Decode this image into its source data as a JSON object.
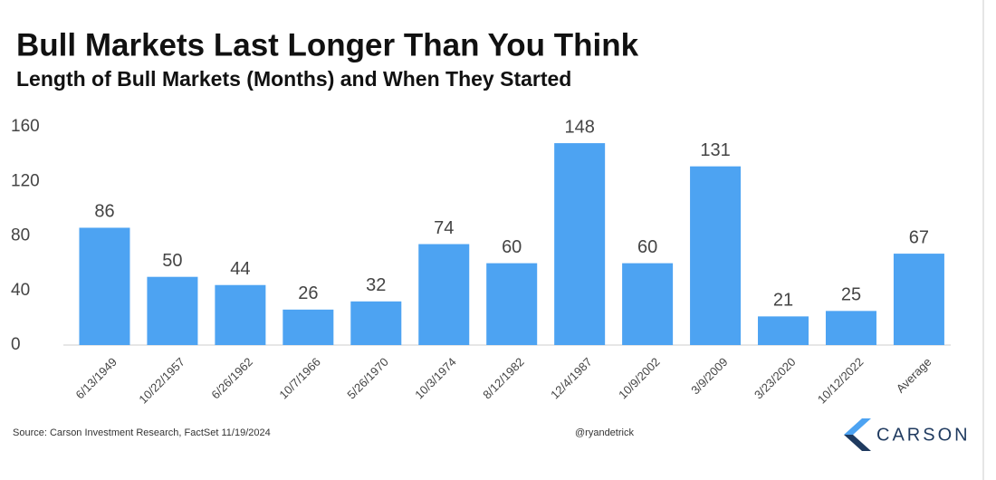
{
  "chart_data": {
    "type": "bar",
    "title": "Bull Markets Last Longer Than You Think",
    "subtitle": "Length of Bull Markets (Months) and When They Started",
    "categories": [
      "6/13/1949",
      "10/22/1957",
      "6/26/1962",
      "10/7/1966",
      "5/26/1970",
      "10/3/1974",
      "8/12/1982",
      "12/4/1987",
      "10/9/2002",
      "3/9/2009",
      "3/23/2020",
      "10/12/2022",
      "Average"
    ],
    "values": [
      86,
      50,
      44,
      26,
      32,
      74,
      60,
      148,
      60,
      131,
      21,
      25,
      67
    ],
    "color": "#4da3f2",
    "ylim": [
      0,
      160
    ],
    "yticks": [
      0,
      40,
      80,
      120,
      160
    ],
    "grid": false,
    "source": "Source: Carson Investment Research, FactSet 11/19/2024",
    "credit": "@ryandetrick",
    "logo_text": "CARSON"
  }
}
